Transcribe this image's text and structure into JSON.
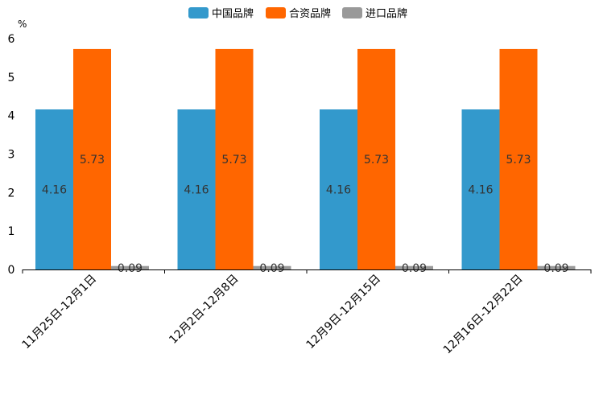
{
  "chart_data": {
    "type": "bar",
    "title": "",
    "ylabel": "%",
    "xlabel": "",
    "ylim": [
      0,
      6
    ],
    "yticks": [
      0,
      1,
      2,
      3,
      4,
      5,
      6
    ],
    "grid": false,
    "legend_position": "top-center",
    "categories": [
      "11月25日-12月1日",
      "12月2日-12月8日",
      "12月9日-12月15日",
      "12月16日-12月22日"
    ],
    "series": [
      {
        "name": "中国品牌",
        "color": "#3399cc",
        "values": [
          4.16,
          4.16,
          4.16,
          4.16
        ]
      },
      {
        "name": "合资品牌",
        "color": "#ff6600",
        "values": [
          5.73,
          5.73,
          5.73,
          5.73
        ]
      },
      {
        "name": "进口品牌",
        "color": "#999999",
        "values": [
          0.09,
          0.09,
          0.09,
          0.09
        ]
      }
    ]
  }
}
